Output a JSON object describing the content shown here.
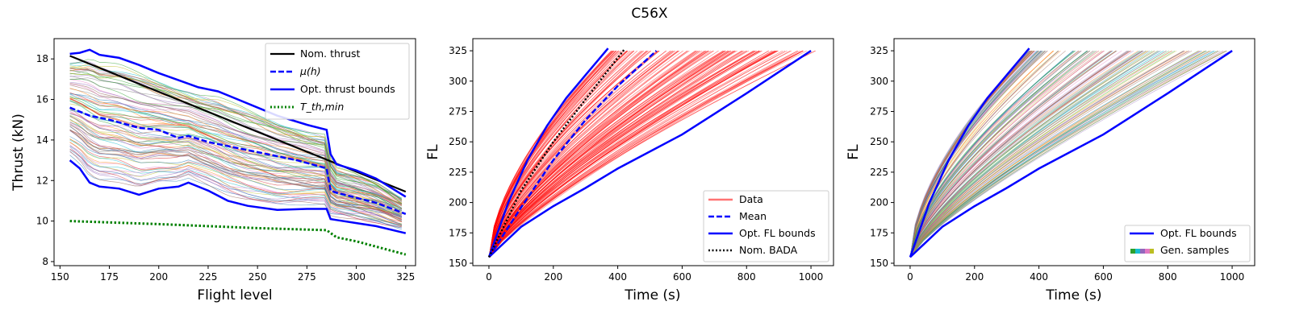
{
  "figure": {
    "title": "C56X"
  },
  "chart_data": [
    {
      "type": "line",
      "xlabel": "Flight level",
      "ylabel": "Thrust (kN)",
      "xlim": [
        147,
        330
      ],
      "ylim": [
        7.8,
        19.0
      ],
      "xticks": [
        150,
        175,
        200,
        225,
        250,
        275,
        300,
        325
      ],
      "yticks": [
        8,
        10,
        12,
        14,
        16,
        18
      ],
      "legend_position": "top-right",
      "legend": [
        {
          "label": "Nom. thrust",
          "color": "#000000",
          "style": "solid"
        },
        {
          "label": "μ(h)",
          "color": "#0000ff",
          "style": "dashed"
        },
        {
          "label": "Opt. thrust bounds",
          "color": "#0000ff",
          "style": "solid"
        },
        {
          "label": "T_th,min",
          "color": "#008000",
          "style": "dotted"
        }
      ],
      "series": [
        {
          "name": "Nom. thrust",
          "x": [
            155,
            325
          ],
          "y": [
            18.15,
            11.45
          ]
        },
        {
          "name": "μ(h)",
          "x": [
            155,
            165,
            175,
            190,
            200,
            210,
            215,
            225,
            240,
            255,
            270,
            285,
            287,
            290,
            300,
            310,
            325
          ],
          "y": [
            15.6,
            15.2,
            15.0,
            14.6,
            14.5,
            14.1,
            14.2,
            13.9,
            13.6,
            13.3,
            13.0,
            12.6,
            11.5,
            11.4,
            11.15,
            10.9,
            10.35
          ]
        },
        {
          "name": "Opt. thrust bounds (upper)",
          "x": [
            155,
            160,
            165,
            170,
            180,
            190,
            200,
            210,
            220,
            230,
            240,
            260,
            275,
            285,
            287,
            290,
            300,
            310,
            325
          ],
          "y": [
            18.25,
            18.3,
            18.45,
            18.2,
            18.05,
            17.7,
            17.3,
            16.95,
            16.6,
            16.4,
            16.0,
            15.2,
            14.75,
            14.5,
            13.3,
            12.8,
            12.5,
            12.1,
            11.2
          ]
        },
        {
          "name": "Opt. thrust bounds (lower)",
          "x": [
            155,
            160,
            165,
            170,
            180,
            190,
            200,
            210,
            215,
            225,
            235,
            245,
            260,
            275,
            285,
            287,
            290,
            300,
            310,
            325
          ],
          "y": [
            13.0,
            12.6,
            11.9,
            11.7,
            11.6,
            11.3,
            11.6,
            11.7,
            11.9,
            11.5,
            11.0,
            10.75,
            10.55,
            10.6,
            10.6,
            10.1,
            10.05,
            9.9,
            9.75,
            9.4
          ]
        },
        {
          "name": "T_th,min",
          "x": [
            155,
            200,
            250,
            285,
            290,
            300,
            325
          ],
          "y": [
            10.0,
            9.85,
            9.65,
            9.55,
            9.2,
            9.0,
            8.35
          ]
        }
      ]
    },
    {
      "type": "line",
      "xlabel": "Time (s)",
      "ylabel": "FL",
      "xlim": [
        -50,
        1070
      ],
      "ylim": [
        148,
        335
      ],
      "xticks": [
        0,
        200,
        400,
        600,
        800,
        1000
      ],
      "yticks": [
        150,
        175,
        200,
        225,
        250,
        275,
        300,
        325
      ],
      "legend_position": "bottom-right",
      "legend": [
        {
          "label": "Data",
          "color": "#ff0000",
          "style": "solid"
        },
        {
          "label": "Mean",
          "color": "#0000ff",
          "style": "dashed"
        },
        {
          "label": "Opt. FL bounds",
          "color": "#0000ff",
          "style": "solid"
        },
        {
          "label": "Nom. BADA",
          "color": "#000000",
          "style": "dotted"
        }
      ],
      "data_envelope": {
        "t_end_min": 380,
        "t_end_max": 1020
      },
      "series": [
        {
          "name": "Mean",
          "x": [
            0,
            100,
            200,
            300,
            400,
            520
          ],
          "y": [
            155,
            196,
            235,
            268,
            296,
            325
          ]
        },
        {
          "name": "Opt. FL bounds (fast)",
          "x": [
            0,
            60,
            120,
            180,
            240,
            300,
            370
          ],
          "y": [
            155,
            200,
            235,
            263,
            286,
            305,
            327
          ]
        },
        {
          "name": "Opt. FL bounds (slow)",
          "x": [
            0,
            100,
            200,
            300,
            400,
            600,
            800,
            1000
          ],
          "y": [
            155,
            180,
            197,
            212,
            228,
            256,
            290,
            325
          ]
        },
        {
          "name": "Nom. BADA",
          "x": [
            0,
            100,
            200,
            300,
            420
          ],
          "y": [
            155,
            210,
            250,
            285,
            326
          ]
        }
      ]
    },
    {
      "type": "line",
      "xlabel": "Time (s)",
      "ylabel": "FL",
      "xlim": [
        -50,
        1070
      ],
      "ylim": [
        148,
        335
      ],
      "xticks": [
        0,
        200,
        400,
        600,
        800,
        1000
      ],
      "yticks": [
        150,
        175,
        200,
        225,
        250,
        275,
        300,
        325
      ],
      "legend_position": "bottom-right",
      "legend": [
        {
          "label": "Opt. FL bounds",
          "color": "#0000ff",
          "style": "solid"
        },
        {
          "label": "Gen. samples",
          "color": "multicolor",
          "style": "solid"
        }
      ],
      "samples_envelope": {
        "t_end_min": 370,
        "t_end_max": 1000
      },
      "series": [
        {
          "name": "Opt. FL bounds (fast)",
          "x": [
            0,
            60,
            120,
            180,
            240,
            300,
            370
          ],
          "y": [
            155,
            200,
            235,
            263,
            286,
            305,
            327
          ]
        },
        {
          "name": "Opt. FL bounds (slow)",
          "x": [
            0,
            100,
            200,
            300,
            400,
            600,
            800,
            1000
          ],
          "y": [
            155,
            180,
            197,
            212,
            228,
            256,
            290,
            325
          ]
        }
      ]
    }
  ]
}
